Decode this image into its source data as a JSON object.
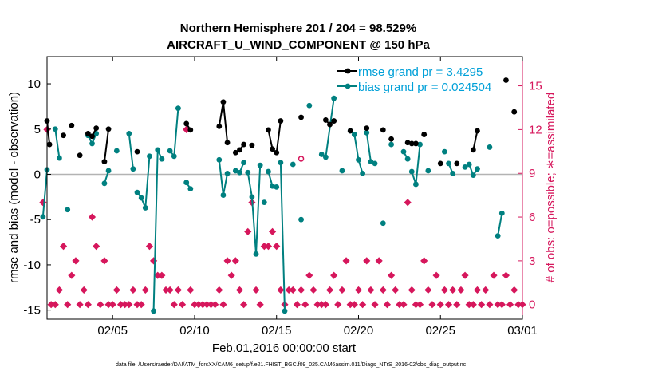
{
  "chart_data": {
    "type": "line",
    "title": "Northern Hemisphere 201 / 204 = 98.529%",
    "subtitle": "AIRCRAFT_U_WIND_COMPONENT @ 150 hPa",
    "xlabel": "Feb.01,2016 00:00:00 start",
    "ylabel": "rmse and bias (model - observation)",
    "y2label": "# of obs: o=possible; ∗=assimilated",
    "footnote": "data file: /Users/raeder/DAI/ATM_forcXX/CAM6_setup/f.e21.FHIST_BGC.f09_025.CAM6assim.011/Diags_NTrS_2016-02/obs_diag_output.nc",
    "xlim": [
      1,
      30
    ],
    "ylim": [
      -16,
      13
    ],
    "y2lim": [
      -1,
      17
    ],
    "x_ticks": [
      5,
      10,
      15,
      20,
      25,
      30
    ],
    "x_tick_labels": [
      "02/05",
      "02/10",
      "02/15",
      "02/20",
      "02/25",
      "03/01"
    ],
    "y_ticks": [
      -15,
      -10,
      -5,
      0,
      5,
      10
    ],
    "y2_ticks": [
      0,
      3,
      6,
      9,
      12,
      15
    ],
    "colors": {
      "rmse": "#000000",
      "bias": "#008080",
      "obs": "#d6175c",
      "axis": "#000000",
      "zero": "#b3b3b3",
      "legend_text": "#00a0d8"
    },
    "legend": [
      "rmse grand pr = 3.4295",
      "bias grand pr = 0.024504"
    ],
    "series": [
      {
        "name": "rmse",
        "segments": [
          [
            [
              1.0,
              5.9
            ],
            [
              1.15,
              3.3
            ]
          ],
          [
            [
              2.0,
              4.3
            ]
          ],
          [
            [
              2.5,
              5.4
            ]
          ],
          [
            [
              3.0,
              2.1
            ]
          ],
          [
            [
              3.5,
              4.5
            ],
            [
              3.75,
              4.2
            ],
            [
              4.0,
              5.1
            ]
          ],
          [
            [
              4.5,
              1.4
            ],
            [
              4.75,
              5.0
            ]
          ],
          [
            [
              6.5,
              2.5
            ]
          ],
          [
            [
              9.5,
              5.6
            ],
            [
              9.75,
              4.9
            ]
          ],
          [
            [
              11.5,
              5.3
            ],
            [
              11.75,
              8.0
            ],
            [
              12.0,
              3.5
            ]
          ],
          [
            [
              12.5,
              2.4
            ],
            [
              12.75,
              2.7
            ],
            [
              13.0,
              3.3
            ]
          ],
          [
            [
              13.5,
              3.2
            ]
          ],
          [
            [
              14.5,
              4.9
            ],
            [
              14.75,
              2.8
            ],
            [
              15.0,
              2.4
            ],
            [
              15.25,
              5.9
            ]
          ],
          [
            [
              16.5,
              6.3
            ]
          ],
          [
            [
              18.0,
              6.0
            ],
            [
              18.25,
              5.5
            ],
            [
              18.5,
              5.9
            ]
          ],
          [
            [
              19.5,
              4.8
            ]
          ],
          [
            [
              20.5,
              5.1
            ]
          ],
          [
            [
              21.5,
              4.9
            ]
          ],
          [
            [
              22.0,
              3.9
            ]
          ],
          [
            [
              23.0,
              3.5
            ],
            [
              23.25,
              3.4
            ]
          ],
          [
            [
              23.5,
              3.4
            ]
          ],
          [
            [
              24.0,
              4.4
            ]
          ],
          [
            [
              25.0,
              1.2
            ]
          ],
          [
            [
              26.0,
              1.2
            ]
          ],
          [
            [
              27.0,
              2.7
            ],
            [
              27.25,
              4.8
            ]
          ],
          [
            [
              29.0,
              10.4
            ]
          ],
          [
            [
              29.5,
              6.9
            ]
          ]
        ]
      },
      {
        "name": "bias",
        "segments": [
          [
            [
              0.75,
              -4.7
            ],
            [
              1.0,
              0.5
            ]
          ],
          [
            [
              1.5,
              5.0
            ],
            [
              1.75,
              1.8
            ]
          ],
          [
            [
              2.25,
              -3.9
            ]
          ],
          [
            [
              3.5,
              4.3
            ],
            [
              3.75,
              3.4
            ],
            [
              4.0,
              4.5
            ]
          ],
          [
            [
              4.5,
              -1.0
            ],
            [
              4.75,
              0.4
            ]
          ],
          [
            [
              5.25,
              2.6
            ]
          ],
          [
            [
              6.0,
              4.5
            ],
            [
              6.25,
              0.6
            ]
          ],
          [
            [
              6.5,
              -2.0
            ],
            [
              6.75,
              -2.6
            ],
            [
              7.0,
              -3.7
            ],
            [
              7.25,
              2.0
            ]
          ],
          [
            [
              7.5,
              -15.1
            ],
            [
              7.75,
              2.7
            ],
            [
              8.0,
              1.7
            ]
          ],
          [
            [
              8.5,
              2.6
            ],
            [
              8.75,
              2.0
            ],
            [
              9.0,
              7.3
            ]
          ],
          [
            [
              9.5,
              -0.9
            ],
            [
              9.75,
              -1.6
            ]
          ],
          [
            [
              11.5,
              1.6
            ],
            [
              11.75,
              -2.3
            ],
            [
              12.0,
              0.1
            ]
          ],
          [
            [
              12.5,
              0.4
            ],
            [
              12.75,
              0.2
            ],
            [
              13.0,
              1.3
            ]
          ],
          [
            [
              13.25,
              0.2
            ],
            [
              13.5,
              -2.5
            ],
            [
              13.75,
              -8.8
            ],
            [
              14.0,
              1.0
            ]
          ],
          [
            [
              14.25,
              -3.1
            ]
          ],
          [
            [
              14.5,
              0.3
            ],
            [
              14.75,
              -1.3
            ],
            [
              15.0,
              -1.4
            ]
          ],
          [
            [
              15.25,
              1.3
            ],
            [
              15.5,
              -15.1
            ]
          ],
          [
            [
              16.0,
              1.1
            ]
          ],
          [
            [
              16.5,
              -5.0
            ]
          ],
          [
            [
              17.0,
              7.6
            ]
          ],
          [
            [
              17.75,
              2.2
            ],
            [
              18.0,
              1.9
            ],
            [
              18.5,
              8.4
            ]
          ],
          [
            [
              19.0,
              0.4
            ]
          ],
          [
            [
              19.5,
              4.8
            ],
            [
              19.75,
              4.4
            ],
            [
              20.0,
              1.6
            ],
            [
              20.25,
              0.1
            ]
          ],
          [
            [
              20.5,
              4.6
            ],
            [
              20.75,
              1.4
            ],
            [
              21.0,
              1.2
            ]
          ],
          [
            [
              21.5,
              -5.4
            ]
          ],
          [
            [
              22.0,
              3.3
            ]
          ],
          [
            [
              22.75,
              2.5
            ],
            [
              23.0,
              1.7
            ]
          ],
          [
            [
              23.25,
              0.3
            ],
            [
              23.5,
              -1.1
            ],
            [
              23.75,
              3.3
            ]
          ],
          [
            [
              24.25,
              0.4
            ]
          ],
          [
            [
              25.25,
              2.5
            ]
          ],
          [
            [
              25.5,
              1.2
            ],
            [
              25.75,
              0.1
            ]
          ],
          [
            [
              26.5,
              0.8
            ],
            [
              26.75,
              1.1
            ],
            [
              27.0,
              -0.1
            ],
            [
              27.25,
              0.6
            ]
          ],
          [
            [
              28.0,
              3.0
            ]
          ],
          [
            [
              28.5,
              -6.8
            ],
            [
              28.75,
              -4.3
            ]
          ]
        ]
      },
      {
        "name": "obs_assimilated",
        "points": [
          [
            0.75,
            7
          ],
          [
            1.0,
            12
          ],
          [
            1.25,
            0
          ],
          [
            1.5,
            0
          ],
          [
            1.75,
            1
          ],
          [
            2.0,
            4
          ],
          [
            2.25,
            0
          ],
          [
            2.5,
            2
          ],
          [
            2.75,
            3
          ],
          [
            3.0,
            0
          ],
          [
            3.25,
            1
          ],
          [
            3.5,
            0
          ],
          [
            3.75,
            6
          ],
          [
            4.0,
            4
          ],
          [
            4.25,
            0
          ],
          [
            4.5,
            3
          ],
          [
            4.75,
            0
          ],
          [
            5.0,
            0
          ],
          [
            5.25,
            1
          ],
          [
            5.5,
            0
          ],
          [
            5.75,
            0
          ],
          [
            6.0,
            0
          ],
          [
            6.25,
            1
          ],
          [
            6.5,
            0
          ],
          [
            6.75,
            0
          ],
          [
            7.0,
            1
          ],
          [
            7.25,
            4
          ],
          [
            7.5,
            3
          ],
          [
            7.75,
            2
          ],
          [
            8.0,
            2
          ],
          [
            8.25,
            1
          ],
          [
            8.5,
            1
          ],
          [
            8.75,
            0
          ],
          [
            9.0,
            1
          ],
          [
            9.25,
            0
          ],
          [
            9.5,
            12
          ],
          [
            9.75,
            1
          ],
          [
            10.0,
            0
          ],
          [
            10.25,
            0
          ],
          [
            10.5,
            0
          ],
          [
            10.75,
            0
          ],
          [
            11.0,
            0
          ],
          [
            11.25,
            0
          ],
          [
            11.5,
            1
          ],
          [
            11.75,
            0
          ],
          [
            12.0,
            3
          ],
          [
            12.25,
            2
          ],
          [
            12.5,
            3
          ],
          [
            12.75,
            1
          ],
          [
            13.0,
            0
          ],
          [
            13.25,
            5
          ],
          [
            13.5,
            7
          ],
          [
            13.75,
            1
          ],
          [
            14.0,
            0
          ],
          [
            14.25,
            4
          ],
          [
            14.5,
            4
          ],
          [
            14.75,
            5
          ],
          [
            15.0,
            4
          ],
          [
            15.25,
            1
          ],
          [
            15.5,
            0
          ],
          [
            15.75,
            1
          ],
          [
            16.0,
            1
          ],
          [
            16.25,
            0
          ],
          [
            16.5,
            1
          ],
          [
            16.75,
            0
          ],
          [
            17.0,
            2
          ],
          [
            17.25,
            1
          ],
          [
            17.5,
            0
          ],
          [
            17.75,
            0
          ],
          [
            18.0,
            0
          ],
          [
            18.25,
            1
          ],
          [
            18.5,
            2
          ],
          [
            18.75,
            0
          ],
          [
            19.0,
            1
          ],
          [
            19.25,
            3
          ],
          [
            19.5,
            0
          ],
          [
            19.75,
            0
          ],
          [
            20.0,
            1
          ],
          [
            20.25,
            0
          ],
          [
            20.5,
            3
          ],
          [
            20.75,
            1
          ],
          [
            21.0,
            0
          ],
          [
            21.25,
            3
          ],
          [
            21.5,
            1
          ],
          [
            21.75,
            0
          ],
          [
            22.0,
            2
          ],
          [
            22.25,
            1
          ],
          [
            22.5,
            0
          ],
          [
            22.75,
            0
          ],
          [
            23.0,
            7
          ],
          [
            23.25,
            1
          ],
          [
            23.5,
            0
          ],
          [
            23.75,
            0
          ],
          [
            24.0,
            3
          ],
          [
            24.25,
            1
          ],
          [
            24.5,
            0
          ],
          [
            24.75,
            2
          ],
          [
            25.0,
            0
          ],
          [
            25.25,
            1
          ],
          [
            25.5,
            0
          ],
          [
            25.75,
            1
          ],
          [
            26.0,
            0
          ],
          [
            26.25,
            1
          ],
          [
            26.5,
            2
          ],
          [
            26.75,
            0
          ],
          [
            27.0,
            0
          ],
          [
            27.25,
            1
          ],
          [
            27.5,
            0
          ],
          [
            27.75,
            1
          ],
          [
            28.0,
            0
          ],
          [
            28.25,
            2
          ],
          [
            28.5,
            0
          ],
          [
            28.75,
            0
          ],
          [
            29.0,
            2
          ],
          [
            29.25,
            0
          ],
          [
            29.5,
            1
          ],
          [
            29.75,
            0
          ],
          [
            30.0,
            0
          ]
        ]
      },
      {
        "name": "obs_possible",
        "points": [
          [
            16.5,
            10
          ]
        ]
      }
    ]
  }
}
